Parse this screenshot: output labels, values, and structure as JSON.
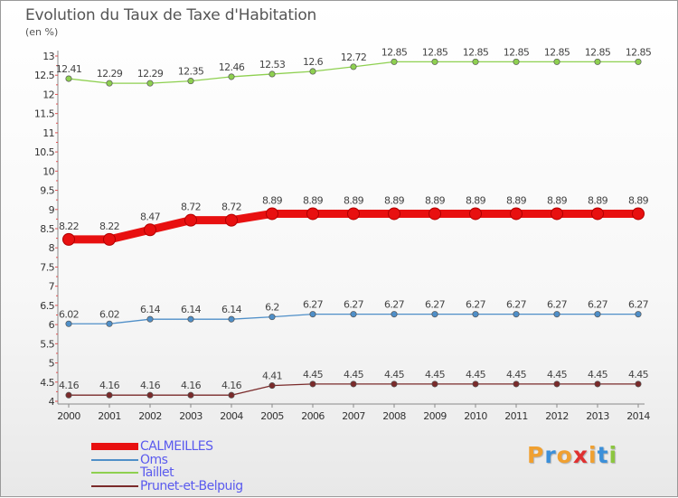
{
  "title": "Evolution du Taux de Taxe d'Habitation",
  "unit_label": "(en %)",
  "logo": {
    "text": "Proxiti",
    "colors": [
      "#f0a030",
      "#3b8fd9",
      "#f0a030",
      "#e03030",
      "#f0a030",
      "#3b8fd9",
      "#8cc640"
    ]
  },
  "chart_data": {
    "type": "line",
    "title": "Evolution du Taux de Taxe d'Habitation",
    "ylabel": "(en %)",
    "xlabel": "",
    "ylim": [
      4,
      13
    ],
    "y_ticks": [
      "4",
      "4.5",
      "5",
      "5.5",
      "6",
      "6.5",
      "7",
      "7.5",
      "8",
      "8.5",
      "9",
      "9.5",
      "10",
      "10.5",
      "11",
      "11.5",
      "12",
      "12.5",
      "13"
    ],
    "x": [
      "2000",
      "2001",
      "2002",
      "2003",
      "2004",
      "2005",
      "2006",
      "2007",
      "2008",
      "2009",
      "2010",
      "2011",
      "2012",
      "2013",
      "2014"
    ],
    "series": [
      {
        "name": "CALMEILLES",
        "color": "#e81010",
        "emphasis": true,
        "values": [
          8.22,
          8.22,
          8.47,
          8.72,
          8.72,
          8.89,
          8.89,
          8.89,
          8.89,
          8.89,
          8.89,
          8.89,
          8.89,
          8.89,
          8.89
        ],
        "labels": [
          "8.22",
          "8.22",
          "8.47",
          "8.72",
          "8.72",
          "8.89",
          "8.89",
          "8.89",
          "8.89",
          "8.89",
          "8.89",
          "8.89",
          "8.89",
          "8.89",
          "8.89"
        ]
      },
      {
        "name": "Oms",
        "color": "#4f8fc8",
        "emphasis": false,
        "values": [
          6.02,
          6.02,
          6.14,
          6.14,
          6.14,
          6.2,
          6.27,
          6.27,
          6.27,
          6.27,
          6.27,
          6.27,
          6.27,
          6.27,
          6.27
        ],
        "labels": [
          "6.02",
          "6.02",
          "6.14",
          "6.14",
          "6.14",
          "6.2",
          "6.27",
          "6.27",
          "6.27",
          "6.27",
          "6.27",
          "6.27",
          "6.27",
          "6.27",
          "6.27"
        ]
      },
      {
        "name": "Taillet",
        "color": "#8ed050",
        "emphasis": false,
        "values": [
          12.41,
          12.29,
          12.29,
          12.35,
          12.46,
          12.53,
          12.6,
          12.72,
          12.85,
          12.85,
          12.85,
          12.85,
          12.85,
          12.85,
          12.85
        ],
        "labels": [
          "12.41",
          "12.29",
          "12.29",
          "12.35",
          "12.46",
          "12.53",
          "12.6",
          "12.72",
          "12.85",
          "12.85",
          "12.85",
          "12.85",
          "12.85",
          "12.85",
          "12.85"
        ]
      },
      {
        "name": "Prunet-et-Belpuig",
        "color": "#7a2a2a",
        "emphasis": false,
        "values": [
          4.16,
          4.16,
          4.16,
          4.16,
          4.16,
          4.41,
          4.45,
          4.45,
          4.45,
          4.45,
          4.45,
          4.45,
          4.45,
          4.45,
          4.45
        ],
        "labels": [
          "4.16",
          "4.16",
          "4.16",
          "4.16",
          "4.16",
          "4.41",
          "4.45",
          "4.45",
          "4.45",
          "4.45",
          "4.45",
          "4.45",
          "4.45",
          "4.45",
          "4.45"
        ]
      }
    ],
    "legend_position": "bottom-left",
    "grid": false
  }
}
